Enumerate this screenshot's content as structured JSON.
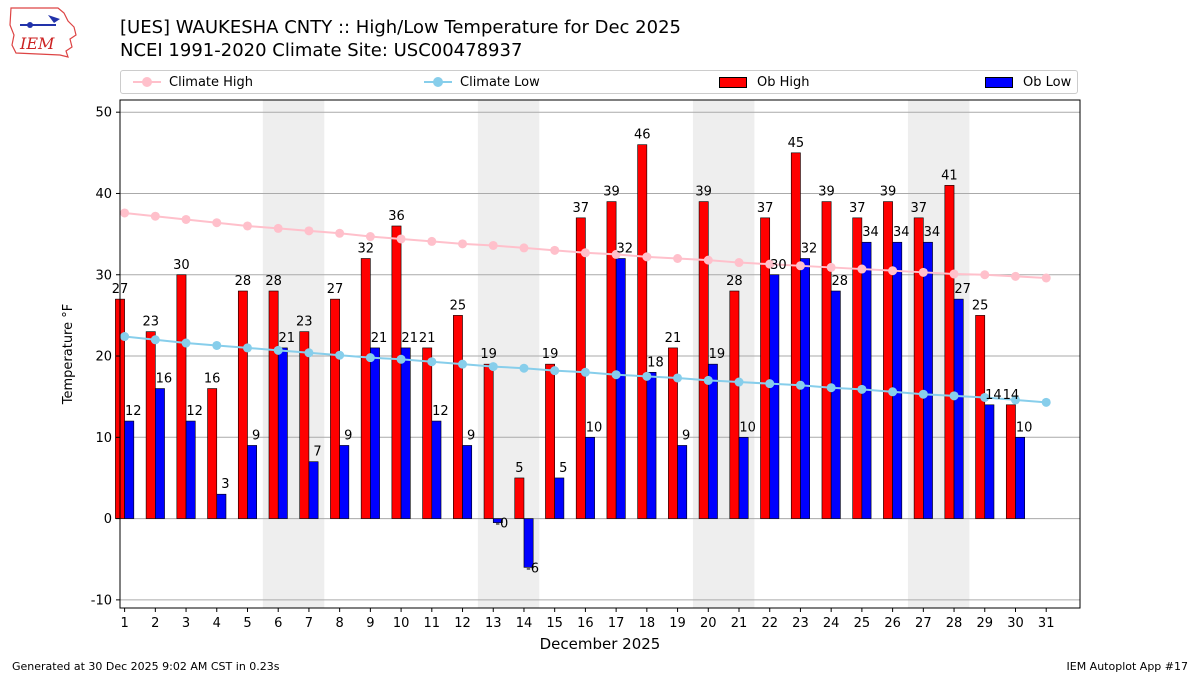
{
  "header": {
    "title_line1": "[UES] WAUKESHA CNTY :: High/Low Temperature for Dec 2025",
    "title_line2": "NCEI 1991-2020 Climate Site: USC00478937",
    "logo_text": "IEM"
  },
  "legend": {
    "climate_high": "Climate High",
    "climate_low": "Climate Low",
    "ob_high": "Ob High",
    "ob_low": "Ob Low"
  },
  "colors": {
    "ob_high": "#ff0000",
    "ob_low": "#0000ff",
    "climate_high": "#ffc0cb",
    "climate_low": "#87ceeb",
    "weekend_band": "#eeeeee",
    "grid": "#aaaaaa"
  },
  "chart_data": {
    "type": "bar",
    "ylabel": "Temperature °F",
    "xlabel": "December 2025",
    "ylim": [
      -11,
      51.5
    ],
    "yticks": [
      -10,
      0,
      10,
      20,
      30,
      40,
      50
    ],
    "grid": "horizontal",
    "legend_position": "top",
    "categories": [
      "1",
      "2",
      "3",
      "4",
      "5",
      "6",
      "7",
      "8",
      "9",
      "10",
      "11",
      "12",
      "13",
      "14",
      "15",
      "16",
      "17",
      "18",
      "19",
      "20",
      "21",
      "22",
      "23",
      "24",
      "25",
      "26",
      "27",
      "28",
      "29",
      "30",
      "31"
    ],
    "weekend_bands": [
      [
        6,
        7
      ],
      [
        13,
        14
      ],
      [
        20,
        21
      ],
      [
        27,
        28
      ]
    ],
    "series": [
      {
        "name": "Ob High",
        "kind": "bar",
        "values": [
          27,
          23,
          30,
          16,
          28,
          28,
          23,
          27,
          32,
          36,
          21,
          25,
          19,
          5,
          19,
          37,
          39,
          46,
          21,
          39,
          28,
          37,
          45,
          39,
          37,
          39,
          37,
          41,
          25,
          14,
          null
        ],
        "labels": [
          "27",
          "23",
          "30",
          "16",
          "28",
          "28",
          "23",
          "27",
          "32",
          "36",
          "21",
          "25",
          "19",
          "5",
          "19",
          "37",
          "39",
          "46",
          "21",
          "39",
          "28",
          "37",
          "45",
          "39",
          "37",
          "39",
          "37",
          "41",
          "25",
          "14",
          null
        ]
      },
      {
        "name": "Ob Low",
        "kind": "bar",
        "values": [
          12,
          16,
          12,
          3,
          9,
          21,
          7,
          9,
          21,
          21,
          12,
          9,
          -0.5,
          -6,
          5,
          10,
          32,
          18,
          9,
          19,
          10,
          30,
          32,
          28,
          34,
          34,
          34,
          27,
          14,
          10,
          null
        ],
        "labels": [
          "12",
          "16",
          "12",
          "3",
          "9",
          "21",
          "7",
          "9",
          "21",
          "21",
          "12",
          "9",
          "-0",
          "-6",
          "5",
          "10",
          "32",
          "18",
          "9",
          "19",
          "10",
          "30",
          "32",
          "28",
          "34",
          "34",
          "34",
          "27",
          "14",
          "10",
          null
        ]
      },
      {
        "name": "Climate High",
        "kind": "line",
        "values": [
          37.6,
          37.2,
          36.8,
          36.4,
          36.0,
          35.7,
          35.4,
          35.1,
          34.7,
          34.4,
          34.1,
          33.8,
          33.6,
          33.3,
          33.0,
          32.7,
          32.5,
          32.2,
          32.0,
          31.8,
          31.5,
          31.3,
          31.1,
          30.9,
          30.7,
          30.5,
          30.3,
          30.1,
          30.0,
          29.8,
          29.6
        ]
      },
      {
        "name": "Climate Low",
        "kind": "line",
        "values": [
          22.4,
          22.0,
          21.6,
          21.3,
          21.0,
          20.7,
          20.4,
          20.1,
          19.8,
          19.6,
          19.3,
          19.0,
          18.7,
          18.5,
          18.2,
          18.0,
          17.7,
          17.5,
          17.3,
          17.0,
          16.8,
          16.6,
          16.4,
          16.1,
          15.9,
          15.6,
          15.3,
          15.1,
          14.9,
          14.6,
          14.3
        ]
      }
    ]
  },
  "footer": {
    "generated": "Generated at 30 Dec 2025 9:02 AM CST in 0.23s",
    "app": "IEM Autoplot App #17"
  }
}
